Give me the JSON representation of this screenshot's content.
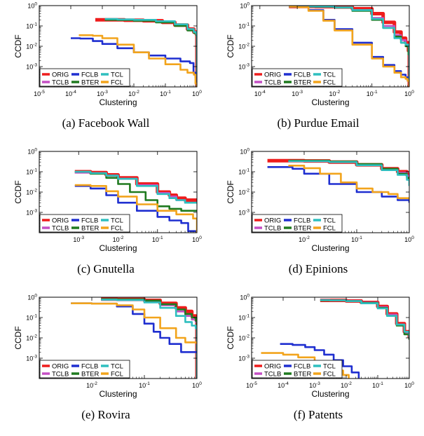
{
  "figure": {
    "series_colors": {
      "ORIG": "#ee1c1c",
      "TCLB": "#c44fc4",
      "FCLB": "#1f2fd0",
      "BTER": "#1f7a1f",
      "TCL": "#2fbfbf",
      "FCL": "#f2a41c"
    },
    "legend_rows": [
      [
        "ORIG",
        "FCLB",
        "TCL"
      ],
      [
        "TCLB",
        "BTER",
        "FCL"
      ]
    ]
  },
  "chart_data": [
    {
      "type": "line",
      "caption": "(a) Facebook Wall",
      "xlabel": "Clustering",
      "ylabel": "CCDF",
      "xscale": "log",
      "yscale": "log",
      "xlim": [
        1e-05,
        1
      ],
      "ylim": [
        0.0001,
        1
      ],
      "xticks": [
        -5,
        -4,
        -3,
        -2,
        -1,
        0
      ],
      "legend": "bottom-left",
      "series": [
        {
          "name": "ORIG",
          "x": [
            0.0006,
            0.001,
            0.005,
            0.02,
            0.08,
            0.2,
            0.5,
            0.8,
            0.95,
            1.0
          ],
          "y": [
            0.2,
            0.2,
            0.19,
            0.18,
            0.15,
            0.11,
            0.07,
            0.05,
            0.04,
            0.0001
          ]
        },
        {
          "name": "TCLB",
          "x": [
            0.0012,
            0.003,
            0.01,
            0.05,
            0.2,
            0.5,
            0.8,
            0.95,
            1.0
          ],
          "y": [
            0.21,
            0.2,
            0.19,
            0.16,
            0.11,
            0.07,
            0.05,
            0.04,
            0.0001
          ]
        },
        {
          "name": "BTER",
          "x": [
            0.0012,
            0.003,
            0.01,
            0.05,
            0.2,
            0.5,
            0.8,
            0.95,
            1.0
          ],
          "y": [
            0.2,
            0.195,
            0.18,
            0.15,
            0.1,
            0.06,
            0.045,
            0.035,
            0.0001
          ]
        },
        {
          "name": "TCL",
          "x": [
            0.0012,
            0.003,
            0.01,
            0.05,
            0.2,
            0.5,
            0.8,
            0.95,
            1.0
          ],
          "y": [
            0.22,
            0.21,
            0.2,
            0.17,
            0.12,
            0.07,
            0.05,
            0.04,
            0.0001
          ]
        },
        {
          "name": "FCLB",
          "x": [
            0.0001,
            0.0002,
            0.0005,
            0.001,
            0.003,
            0.01,
            0.03,
            0.1,
            0.3,
            0.6,
            0.75,
            0.78,
            0.9,
            1.0
          ],
          "y": [
            0.025,
            0.024,
            0.018,
            0.013,
            0.008,
            0.005,
            0.0035,
            0.0025,
            0.0018,
            0.0015,
            0.0015,
            0.0005,
            0.0003,
            0.0001
          ]
        },
        {
          "name": "FCL",
          "x": [
            0.00018,
            0.0005,
            0.001,
            0.003,
            0.01,
            0.03,
            0.1,
            0.3,
            0.5,
            0.8,
            0.9,
            1.0
          ],
          "y": [
            0.035,
            0.033,
            0.025,
            0.012,
            0.005,
            0.0025,
            0.0013,
            0.0007,
            0.0005,
            0.0004,
            0.00015,
            0.0001
          ]
        }
      ]
    },
    {
      "type": "line",
      "caption": "(b) Purdue Email",
      "xlabel": "Clustering",
      "ylabel": "CCDF",
      "xscale": "log",
      "yscale": "log",
      "xlim": [
        6e-05,
        1
      ],
      "ylim": [
        0.0001,
        1
      ],
      "xticks": [
        -4,
        -3,
        -2,
        -1,
        0
      ],
      "legend": "bottom-left",
      "series": [
        {
          "name": "ORIG",
          "x": [
            0.0006,
            0.001,
            0.003,
            0.01,
            0.03,
            0.1,
            0.2,
            0.4,
            0.6,
            0.8,
            0.95,
            1.0
          ],
          "y": [
            0.9,
            0.9,
            0.89,
            0.85,
            0.7,
            0.4,
            0.15,
            0.05,
            0.025,
            0.015,
            0.006,
            0.0001
          ]
        },
        {
          "name": "TCLB",
          "x": [
            0.0006,
            0.001,
            0.003,
            0.01,
            0.03,
            0.1,
            0.2,
            0.4,
            0.6,
            0.8,
            0.95,
            1.0
          ],
          "y": [
            0.9,
            0.9,
            0.88,
            0.8,
            0.6,
            0.25,
            0.1,
            0.035,
            0.02,
            0.012,
            0.005,
            0.0001
          ]
        },
        {
          "name": "BTER",
          "x": [
            0.0006,
            0.001,
            0.003,
            0.01,
            0.03,
            0.1,
            0.2,
            0.4,
            0.6,
            0.8,
            0.95,
            1.0
          ],
          "y": [
            0.9,
            0.9,
            0.88,
            0.8,
            0.55,
            0.2,
            0.08,
            0.03,
            0.015,
            0.01,
            0.004,
            0.0001
          ]
        },
        {
          "name": "TCL",
          "x": [
            0.0006,
            0.001,
            0.003,
            0.01,
            0.03,
            0.1,
            0.2,
            0.4,
            0.6,
            0.8,
            0.95,
            1.0
          ],
          "y": [
            0.9,
            0.9,
            0.89,
            0.82,
            0.6,
            0.22,
            0.08,
            0.025,
            0.015,
            0.012,
            0.01,
            0.0001
          ]
        },
        {
          "name": "FCLB",
          "x": [
            0.0006,
            0.001,
            0.002,
            0.005,
            0.01,
            0.03,
            0.1,
            0.2,
            0.4,
            0.6,
            0.8,
            0.9,
            1.0
          ],
          "y": [
            0.9,
            0.85,
            0.6,
            0.2,
            0.07,
            0.015,
            0.003,
            0.0012,
            0.0006,
            0.0004,
            0.0003,
            0.0002,
            0.0001
          ]
        },
        {
          "name": "FCL",
          "x": [
            0.0006,
            0.001,
            0.002,
            0.005,
            0.01,
            0.03,
            0.1,
            0.2,
            0.4,
            0.6,
            0.8,
            0.9,
            1.0
          ],
          "y": [
            0.9,
            0.84,
            0.55,
            0.18,
            0.06,
            0.012,
            0.0025,
            0.001,
            0.0005,
            0.0003,
            0.00025,
            0.0002,
            0.0001
          ]
        }
      ]
    },
    {
      "type": "line",
      "caption": "(c) Gnutella",
      "xlabel": "Clustering",
      "ylabel": "CCDF",
      "xscale": "log",
      "yscale": "log",
      "xlim": [
        0.0001,
        1
      ],
      "ylim": [
        0.0001,
        1
      ],
      "xticks": [
        -4,
        -3,
        -2,
        -1,
        0
      ],
      "legend": "bottom-left",
      "series": [
        {
          "name": "ORIG",
          "x": [
            0.0008,
            0.002,
            0.005,
            0.01,
            0.03,
            0.1,
            0.2,
            0.3,
            0.5,
            1.0
          ],
          "y": [
            0.1,
            0.09,
            0.07,
            0.05,
            0.025,
            0.01,
            0.007,
            0.005,
            0.004,
            0.004
          ]
        },
        {
          "name": "TCLB",
          "x": [
            0.0008,
            0.002,
            0.005,
            0.01,
            0.03,
            0.1,
            0.2,
            0.3,
            0.5,
            1.0
          ],
          "y": [
            0.09,
            0.085,
            0.065,
            0.045,
            0.022,
            0.009,
            0.006,
            0.004,
            0.003,
            0.003
          ]
        },
        {
          "name": "BTER",
          "x": [
            0.0008,
            0.002,
            0.005,
            0.01,
            0.02,
            0.05,
            0.1,
            0.2,
            0.4,
            1.0
          ],
          "y": [
            0.1,
            0.08,
            0.05,
            0.025,
            0.01,
            0.004,
            0.002,
            0.0015,
            0.0012,
            0.0012
          ]
        },
        {
          "name": "TCL",
          "x": [
            0.0008,
            0.002,
            0.005,
            0.01,
            0.03,
            0.1,
            0.2,
            0.3,
            0.5,
            1.0
          ],
          "y": [
            0.1,
            0.085,
            0.065,
            0.045,
            0.02,
            0.008,
            0.005,
            0.004,
            0.003,
            0.003
          ]
        },
        {
          "name": "FCLB",
          "x": [
            0.0008,
            0.001,
            0.002,
            0.005,
            0.01,
            0.03,
            0.1,
            0.2,
            0.4,
            0.6,
            1.0
          ],
          "y": [
            0.02,
            0.02,
            0.015,
            0.007,
            0.003,
            0.0012,
            0.0006,
            0.0004,
            0.0003,
            0.00012,
            0.0001
          ]
        },
        {
          "name": "FCL",
          "x": [
            0.0008,
            0.002,
            0.005,
            0.01,
            0.03,
            0.1,
            0.3,
            0.8,
            1.0
          ],
          "y": [
            0.022,
            0.02,
            0.011,
            0.006,
            0.0025,
            0.0012,
            0.0008,
            0.0005,
            0.0001
          ]
        }
      ]
    },
    {
      "type": "line",
      "caption": "(d) Epinions",
      "xlabel": "Clustering",
      "ylabel": "CCDF",
      "xscale": "log",
      "yscale": "log",
      "xlim": [
        0.001,
        1
      ],
      "ylim": [
        0.0001,
        1
      ],
      "xticks": [
        -3,
        -2,
        -1,
        0
      ],
      "legend": "bottom-left",
      "series": [
        {
          "name": "ORIG",
          "x": [
            0.002,
            0.005,
            0.01,
            0.03,
            0.1,
            0.3,
            0.6,
            0.9,
            1.0
          ],
          "y": [
            0.35,
            0.35,
            0.34,
            0.3,
            0.22,
            0.14,
            0.1,
            0.07,
            0.06
          ]
        },
        {
          "name": "TCLB",
          "x": [
            0.005,
            0.01,
            0.03,
            0.1,
            0.3,
            0.6,
            0.9,
            1.0
          ],
          "y": [
            0.33,
            0.33,
            0.3,
            0.22,
            0.13,
            0.09,
            0.065,
            0.055
          ]
        },
        {
          "name": "BTER",
          "x": [
            0.005,
            0.01,
            0.03,
            0.1,
            0.3,
            0.6,
            0.9,
            1.0
          ],
          "y": [
            0.35,
            0.35,
            0.32,
            0.24,
            0.14,
            0.08,
            0.05,
            0.04
          ]
        },
        {
          "name": "TCL",
          "x": [
            0.005,
            0.01,
            0.03,
            0.1,
            0.3,
            0.6,
            0.9,
            1.0
          ],
          "y": [
            0.33,
            0.33,
            0.3,
            0.21,
            0.12,
            0.07,
            0.04,
            0.02
          ]
        },
        {
          "name": "FCLB",
          "x": [
            0.002,
            0.004,
            0.006,
            0.01,
            0.03,
            0.1,
            0.3,
            0.6,
            1.0
          ],
          "y": [
            0.17,
            0.17,
            0.14,
            0.08,
            0.025,
            0.01,
            0.006,
            0.004,
            0.003
          ]
        },
        {
          "name": "FCL",
          "x": [
            0.005,
            0.01,
            0.02,
            0.05,
            0.1,
            0.2,
            0.4,
            0.6,
            1.0
          ],
          "y": [
            0.2,
            0.15,
            0.08,
            0.03,
            0.015,
            0.01,
            0.008,
            0.005,
            0.005
          ]
        }
      ]
    },
    {
      "type": "line",
      "caption": "(e) Rovira",
      "xlabel": "Clustering",
      "ylabel": "CCDF",
      "xscale": "log",
      "yscale": "log",
      "xlim": [
        0.001,
        1
      ],
      "ylim": [
        0.0001,
        1
      ],
      "xticks": [
        -3,
        -2,
        -1,
        0
      ],
      "legend": "bottom-left",
      "series": [
        {
          "name": "ORIG",
          "x": [
            0.015,
            0.03,
            0.1,
            0.2,
            0.4,
            0.6,
            0.8,
            0.95,
            1.0
          ],
          "y": [
            0.8,
            0.78,
            0.7,
            0.5,
            0.3,
            0.2,
            0.12,
            0.08,
            0.0001
          ]
        },
        {
          "name": "TCLB",
          "x": [
            0.015,
            0.03,
            0.1,
            0.2,
            0.4,
            0.6,
            0.8,
            0.95,
            1.0
          ],
          "y": [
            0.75,
            0.72,
            0.6,
            0.4,
            0.2,
            0.12,
            0.08,
            0.06,
            0.0001
          ]
        },
        {
          "name": "BTER",
          "x": [
            0.015,
            0.03,
            0.1,
            0.2,
            0.4,
            0.6,
            0.8,
            0.95,
            1.0
          ],
          "y": [
            0.8,
            0.78,
            0.68,
            0.45,
            0.25,
            0.15,
            0.1,
            0.07,
            0.0001
          ]
        },
        {
          "name": "TCL",
          "x": [
            0.015,
            0.03,
            0.1,
            0.2,
            0.4,
            0.6,
            0.8,
            0.95,
            1.0
          ],
          "y": [
            0.75,
            0.72,
            0.55,
            0.3,
            0.12,
            0.06,
            0.04,
            0.03,
            0.0001
          ]
        },
        {
          "name": "FCLB",
          "x": [
            0.004,
            0.01,
            0.03,
            0.06,
            0.1,
            0.15,
            0.2,
            0.3,
            0.5,
            1.0
          ],
          "y": [
            0.5,
            0.48,
            0.35,
            0.15,
            0.05,
            0.02,
            0.01,
            0.005,
            0.002,
            0.0018
          ]
        },
        {
          "name": "FCL",
          "x": [
            0.004,
            0.01,
            0.03,
            0.06,
            0.1,
            0.2,
            0.4,
            0.6,
            1.0
          ],
          "y": [
            0.5,
            0.48,
            0.4,
            0.25,
            0.1,
            0.03,
            0.01,
            0.006,
            0.005
          ]
        }
      ]
    },
    {
      "type": "line",
      "caption": "(f) Patents",
      "xlabel": "Clustering",
      "ylabel": "CCDF",
      "xscale": "log",
      "yscale": "log",
      "xlim": [
        1e-05,
        1
      ],
      "ylim": [
        0.0001,
        1
      ],
      "xticks": [
        -5,
        -4,
        -3,
        -2,
        -1,
        0
      ],
      "legend": "bottom-left",
      "series": [
        {
          "name": "ORIG",
          "x": [
            0.0015,
            0.003,
            0.01,
            0.03,
            0.1,
            0.2,
            0.4,
            0.7,
            1.0
          ],
          "y": [
            0.7,
            0.7,
            0.65,
            0.55,
            0.35,
            0.15,
            0.05,
            0.02,
            0.01
          ]
        },
        {
          "name": "TCLB",
          "x": [
            0.0015,
            0.003,
            0.01,
            0.03,
            0.1,
            0.2,
            0.4,
            0.7,
            1.0
          ],
          "y": [
            0.72,
            0.71,
            0.66,
            0.55,
            0.33,
            0.14,
            0.045,
            0.018,
            0.009
          ]
        },
        {
          "name": "BTER",
          "x": [
            0.0015,
            0.003,
            0.01,
            0.03,
            0.1,
            0.2,
            0.4,
            0.7,
            1.0
          ],
          "y": [
            0.7,
            0.7,
            0.65,
            0.53,
            0.3,
            0.12,
            0.04,
            0.015,
            0.008
          ]
        },
        {
          "name": "TCL",
          "x": [
            0.0015,
            0.003,
            0.01,
            0.03,
            0.1,
            0.2,
            0.4,
            0.7,
            1.0
          ],
          "y": [
            0.72,
            0.71,
            0.64,
            0.5,
            0.28,
            0.12,
            0.045,
            0.02,
            0.01
          ]
        },
        {
          "name": "FCLB",
          "x": [
            8e-05,
            0.0002,
            0.0005,
            0.001,
            0.002,
            0.004,
            0.008,
            0.015,
            0.025
          ],
          "y": [
            0.005,
            0.0045,
            0.0035,
            0.0025,
            0.0015,
            0.0008,
            0.0004,
            0.0002,
            0.0001
          ]
        },
        {
          "name": "FCL",
          "x": [
            2e-05,
            0.0001,
            0.0003,
            0.001,
            0.002,
            0.004,
            0.008,
            0.012
          ],
          "y": [
            0.0018,
            0.0015,
            0.0011,
            0.0006,
            0.0004,
            0.00025,
            0.00015,
            0.0001
          ]
        }
      ]
    }
  ]
}
